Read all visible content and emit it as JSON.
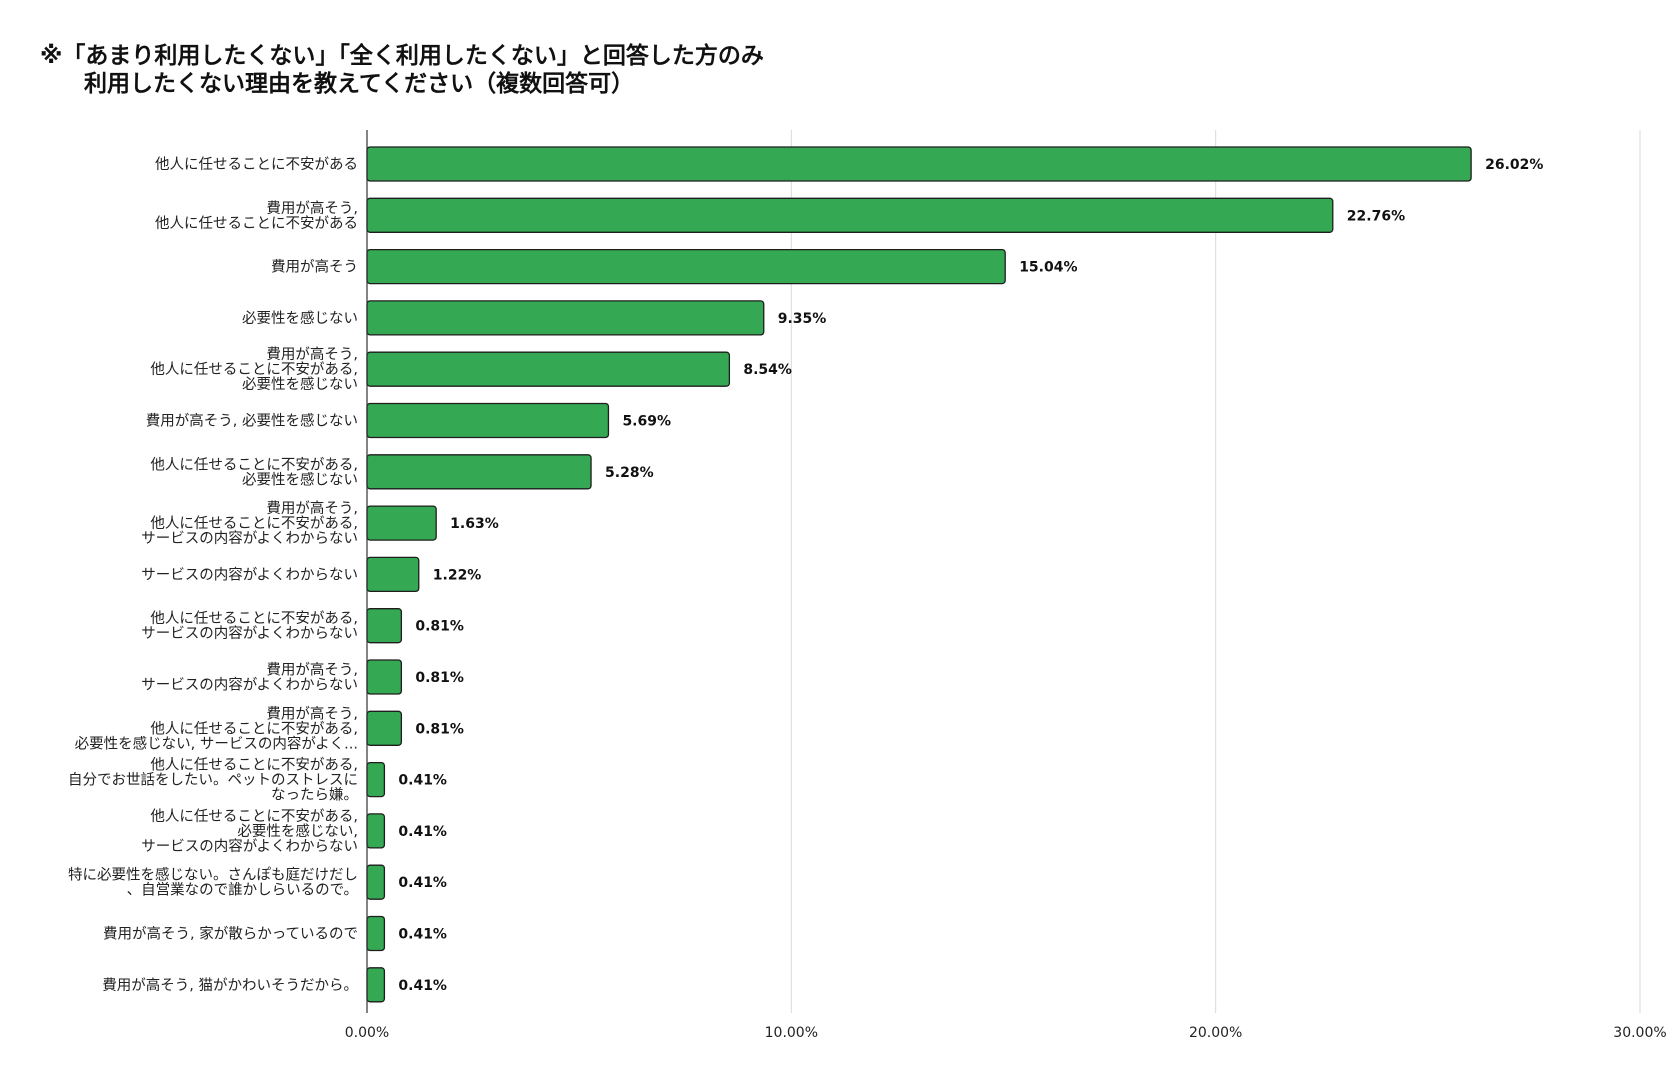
{
  "chart_data": {
    "type": "bar",
    "orientation": "horizontal",
    "title_lines": [
      "※「あまり利用したくない」「全く利用したくない」と回答した方のみ",
      "利用したくない理由を教えてください（複数回答可）"
    ],
    "categories": [
      [
        "他人に任せることに不安がある"
      ],
      [
        "費用が高そう,",
        "他人に任せることに不安がある"
      ],
      [
        "費用が高そう"
      ],
      [
        "必要性を感じない"
      ],
      [
        "費用が高そう,",
        "他人に任せることに不安がある,",
        "必要性を感じない"
      ],
      [
        "費用が高そう, 必要性を感じない"
      ],
      [
        "他人に任せることに不安がある,",
        "必要性を感じない"
      ],
      [
        "費用が高そう,",
        "他人に任せることに不安がある,",
        "サービスの内容がよくわからない"
      ],
      [
        "サービスの内容がよくわからない"
      ],
      [
        "他人に任せることに不安がある,",
        "サービスの内容がよくわからない"
      ],
      [
        "費用が高そう,",
        "サービスの内容がよくわからない"
      ],
      [
        "費用が高そう,",
        "他人に任せることに不安がある,",
        "必要性を感じない, サービスの内容がよく..."
      ],
      [
        "他人に任せることに不安がある,",
        "自分でお世話をしたい。ペットのストレスに",
        "なったら嫌。"
      ],
      [
        "他人に任せることに不安がある,",
        "必要性を感じない,",
        "サービスの内容がよくわからない"
      ],
      [
        "特に必要性を感じない。さんぽも庭だけだし",
        "、自営業なので誰かしらいるので。"
      ],
      [
        "費用が高そう, 家が散らかっているので"
      ],
      [
        "費用が高そう, 猫がかわいそうだから。"
      ]
    ],
    "values": [
      26.02,
      22.76,
      15.04,
      9.35,
      8.54,
      5.69,
      5.28,
      1.63,
      1.22,
      0.81,
      0.81,
      0.81,
      0.41,
      0.41,
      0.41,
      0.41,
      0.41
    ],
    "value_labels": [
      "26.02%",
      "22.76%",
      "15.04%",
      "9.35%",
      "8.54%",
      "5.69%",
      "5.28%",
      "1.63%",
      "1.22%",
      "0.81%",
      "0.81%",
      "0.81%",
      "0.41%",
      "0.41%",
      "0.41%",
      "0.41%",
      "0.41%"
    ],
    "xlim": [
      0,
      30
    ],
    "xticks": [
      0,
      10,
      20,
      30
    ],
    "xtick_labels": [
      "0.00%",
      "10.00%",
      "20.00%",
      "30.00%"
    ],
    "xlabel": "",
    "ylabel": "",
    "grid": true,
    "legend": "none",
    "bar_color": "#34a853",
    "bar_edge_color": "#1e1e1e"
  }
}
